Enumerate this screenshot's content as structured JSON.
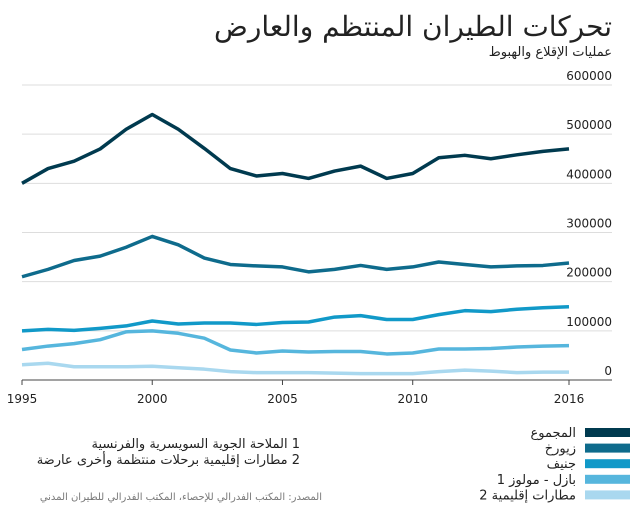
{
  "chart_data": {
    "type": "line",
    "title": "تحركات الطيران المنتظم والعارض",
    "subtitle": "عمليات الإقلاع والهبوط",
    "x": [
      1995,
      1996,
      1997,
      1998,
      1999,
      2000,
      2001,
      2002,
      2003,
      2004,
      2005,
      2006,
      2007,
      2008,
      2009,
      2010,
      2011,
      2012,
      2013,
      2014,
      2015,
      2016
    ],
    "xlim": [
      1995,
      2016
    ],
    "xticks": [
      1995,
      2000,
      2005,
      2010,
      2016
    ],
    "ylim": [
      0,
      600000
    ],
    "yticks": [
      0,
      100000,
      200000,
      300000,
      400000,
      500000,
      600000
    ],
    "grid": true,
    "series": [
      {
        "name": "المجموع",
        "color": "#003a4f",
        "values": [
          400000,
          430000,
          445000,
          470000,
          510000,
          540000,
          510000,
          471000,
          430000,
          415000,
          420000,
          410000,
          425000,
          435000,
          410000,
          420000,
          452000,
          457000,
          450000,
          458000,
          465000,
          470000
        ]
      },
      {
        "name": "زيورخ",
        "color": "#0e6b8c",
        "values": [
          210000,
          225000,
          243000,
          252000,
          270000,
          292000,
          275000,
          248000,
          235000,
          232000,
          230000,
          220000,
          225000,
          233000,
          225000,
          230000,
          240000,
          235000,
          230000,
          232000,
          233000,
          238000
        ]
      },
      {
        "name": "جنيف",
        "color": "#1199c8",
        "values": [
          100000,
          103000,
          101000,
          105000,
          110000,
          120000,
          114000,
          116000,
          116000,
          113000,
          117000,
          118000,
          128000,
          131000,
          123000,
          123000,
          133000,
          141000,
          139000,
          144000,
          147000,
          149000
        ]
      },
      {
        "name": "بازل - مولوز 1",
        "color": "#56b6dd",
        "values": [
          62000,
          69000,
          74000,
          82000,
          98000,
          100000,
          95000,
          85000,
          61000,
          55000,
          59000,
          57000,
          58000,
          58000,
          53000,
          55000,
          63000,
          63000,
          64000,
          67000,
          69000,
          70000
        ]
      },
      {
        "name": "مطارات إقليمية 2",
        "color": "#a9d8ef",
        "values": [
          31000,
          34000,
          27000,
          27000,
          27000,
          28000,
          25000,
          22000,
          17000,
          15000,
          15000,
          15000,
          14000,
          13000,
          13000,
          13000,
          17000,
          20000,
          18000,
          15000,
          16000,
          16000
        ]
      }
    ],
    "footnotes": [
      "1 الملاحة الجوية السويسرية والفرنسية",
      "2 مطارات إقليمية برحلات منتظمة وأخرى عارضة"
    ],
    "source": "المصدر: المكتب الفدرالي للإحصاء، المكتب الفدرالي للطيران المدني"
  }
}
